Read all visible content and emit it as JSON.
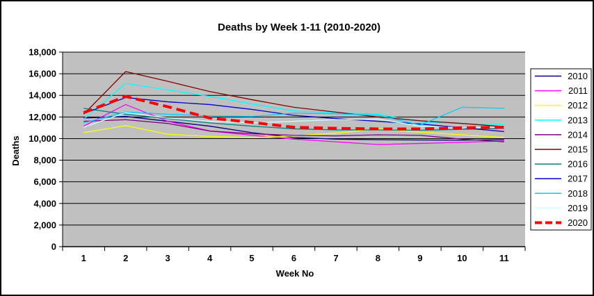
{
  "window": {
    "background": "#FFFFFF",
    "border_color": "#000000"
  },
  "chart_data": {
    "type": "line",
    "title": "Deaths by Week 1-11 (2010-2020)",
    "xlabel": "Week No",
    "ylabel": "Deaths",
    "x": [
      1,
      2,
      3,
      4,
      5,
      6,
      7,
      8,
      9,
      10,
      11
    ],
    "x_tick_labels": [
      "1",
      "2",
      "3",
      "4",
      "5",
      "6",
      "7",
      "8",
      "9",
      "10",
      "11"
    ],
    "ylim": [
      0,
      18000
    ],
    "y_tick_step": 2000,
    "y_tick_labels": [
      "0",
      "2,000",
      "4,000",
      "6,000",
      "8,000",
      "10,000",
      "12,000",
      "14,000",
      "16,000",
      "18,000"
    ],
    "grid": "horizontal-only",
    "plot_bg": "#C0C0C0",
    "gridline_color": "#000000",
    "legend_position": "right",
    "series": [
      {
        "name": "2010",
        "color": "#000080",
        "style": "solid",
        "width": 1.3,
        "values": [
          11900,
          12050,
          11600,
          11150,
          10550,
          10100,
          9950,
          9900,
          9870,
          9850,
          9900
        ]
      },
      {
        "name": "2011",
        "color": "#FF00FF",
        "style": "solid",
        "width": 1.3,
        "values": [
          11150,
          13150,
          11600,
          10700,
          10300,
          9950,
          9700,
          9450,
          9550,
          9650,
          9780
        ]
      },
      {
        "name": "2012",
        "color": "#FFFF00",
        "style": "solid",
        "width": 1.3,
        "values": [
          10550,
          11200,
          10400,
          10200,
          10100,
          10250,
          10500,
          10900,
          10600,
          10350,
          10100
        ]
      },
      {
        "name": "2013",
        "color": "#00FFFF",
        "style": "solid",
        "width": 1.3,
        "values": [
          11800,
          15100,
          14500,
          13900,
          13200,
          12550,
          12400,
          12250,
          11550,
          11400,
          11300
        ]
      },
      {
        "name": "2014",
        "color": "#800080",
        "style": "solid",
        "width": 1.3,
        "values": [
          11600,
          11750,
          11400,
          10700,
          10450,
          10300,
          10250,
          10350,
          10300,
          9950,
          9700
        ]
      },
      {
        "name": "2015",
        "color": "#800000",
        "style": "solid",
        "width": 1.3,
        "values": [
          12250,
          16200,
          15300,
          14350,
          13600,
          12900,
          12450,
          12000,
          11650,
          11400,
          11100
        ]
      },
      {
        "name": "2016",
        "color": "#008080",
        "style": "solid",
        "width": 1.3,
        "values": [
          12800,
          12250,
          11850,
          11450,
          11150,
          10900,
          10800,
          10800,
          10770,
          10850,
          10950
        ]
      },
      {
        "name": "2017",
        "color": "#0000CC",
        "style": "solid",
        "width": 1.3,
        "values": [
          12300,
          13800,
          13400,
          13150,
          12700,
          12150,
          11850,
          11600,
          11350,
          11000,
          10650
        ]
      },
      {
        "name": "2018",
        "color": "#00CCFF",
        "style": "solid",
        "width": 1.3,
        "values": [
          11450,
          12450,
          12250,
          12100,
          12050,
          12350,
          12300,
          12150,
          11250,
          12900,
          12800
        ]
      },
      {
        "name": "2019",
        "color": "#CCFFFF",
        "style": "solid",
        "width": 1.3,
        "values": [
          11050,
          12400,
          11900,
          11600,
          11450,
          11600,
          11750,
          11800,
          11150,
          11000,
          11050
        ]
      },
      {
        "name": "2020",
        "color": "#FF0000",
        "style": "dashed",
        "width": 4,
        "values": [
          12400,
          13900,
          12950,
          11900,
          11500,
          11050,
          10950,
          10900,
          10900,
          11000,
          11050
        ]
      }
    ]
  },
  "layout_colors": {
    "axis_color": "#000000",
    "legend_bg": "#FFFFFF",
    "legend_border": "#000000"
  }
}
